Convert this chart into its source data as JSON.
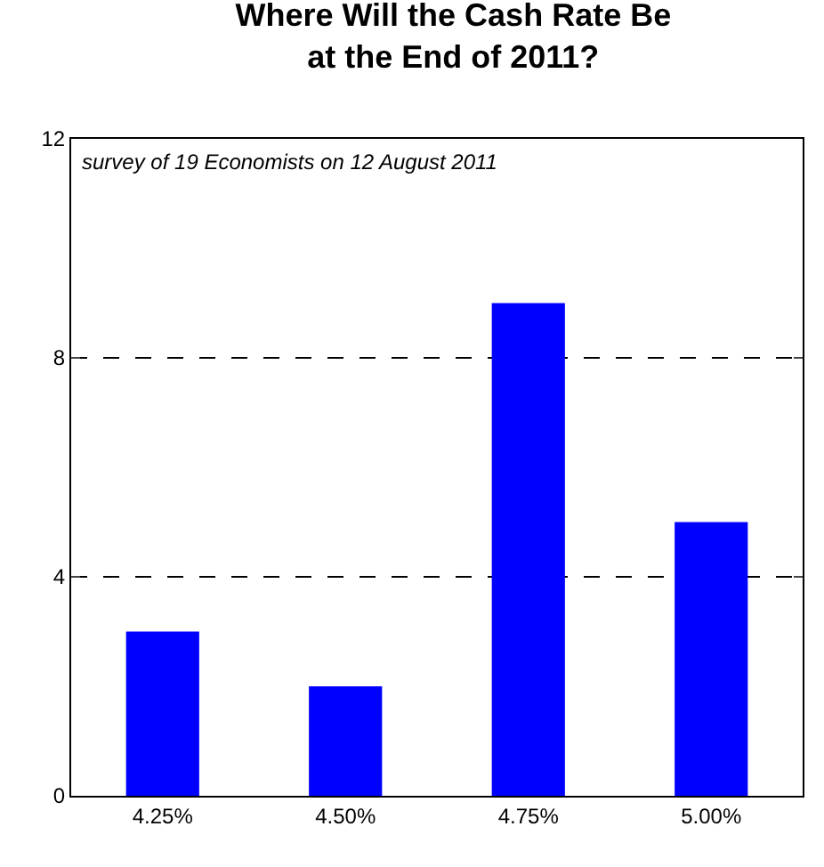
{
  "chart_data": {
    "type": "bar",
    "title": "Where Will the Cash Rate Be at the End of 2011?",
    "categories": [
      "4.25%",
      "4.50%",
      "4.75%",
      "5.00%"
    ],
    "values": [
      3,
      2,
      9,
      5
    ],
    "color": "#0000ff",
    "ylim": [
      0,
      12
    ],
    "yticks": [
      0,
      4,
      8,
      12
    ],
    "grid": "y",
    "line_style": "dashed",
    "annotations": [
      "survey of 19 Economists on 12 August 2011"
    ]
  }
}
